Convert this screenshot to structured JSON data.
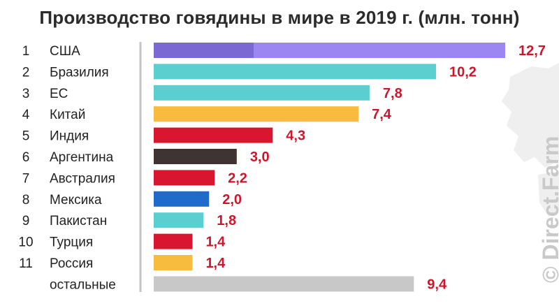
{
  "title": "Производство говядины в мире в 2019 г. (млн. тонн)",
  "watermark": "© Direct.Farm",
  "colors": {
    "axis": "#c4c4c4",
    "value_label": "#d0142a",
    "map": "#efefef"
  },
  "chart_data": {
    "type": "bar",
    "orientation": "horizontal",
    "title": "Производство говядины в мире в 2019 г. (млн. тонн)",
    "xlim": [
      0,
      12.7
    ],
    "ranks": [
      "1",
      "2",
      "3",
      "4",
      "5",
      "6",
      "7",
      "8",
      "9",
      "10",
      "11",
      ""
    ],
    "categories": [
      "США",
      "Бразилия",
      "ЕС",
      "Китай",
      "Индия",
      "Аргентина",
      "Австралия",
      "Мексика",
      "Пакистан",
      "Турция",
      "Россия",
      "остальные"
    ],
    "values": [
      12.7,
      10.2,
      7.8,
      7.4,
      4.3,
      3.0,
      2.2,
      2.0,
      1.8,
      1.4,
      1.4,
      9.4
    ],
    "value_labels": [
      "12,7",
      "10,2",
      "7,8",
      "7,4",
      "4,3",
      "3,0",
      "2,2",
      "2,0",
      "1,8",
      "1,4",
      "1,4",
      "9,4"
    ],
    "bar_colors": [
      "#9c87f2",
      "#5bcfcf",
      "#5bcfcf",
      "#f7bb3e",
      "#d8162f",
      "#3f3333",
      "#d8162f",
      "#1e6bcb",
      "#5bcfcf",
      "#d8162f",
      "#f7bb3e",
      "#c8c8c8"
    ]
  }
}
